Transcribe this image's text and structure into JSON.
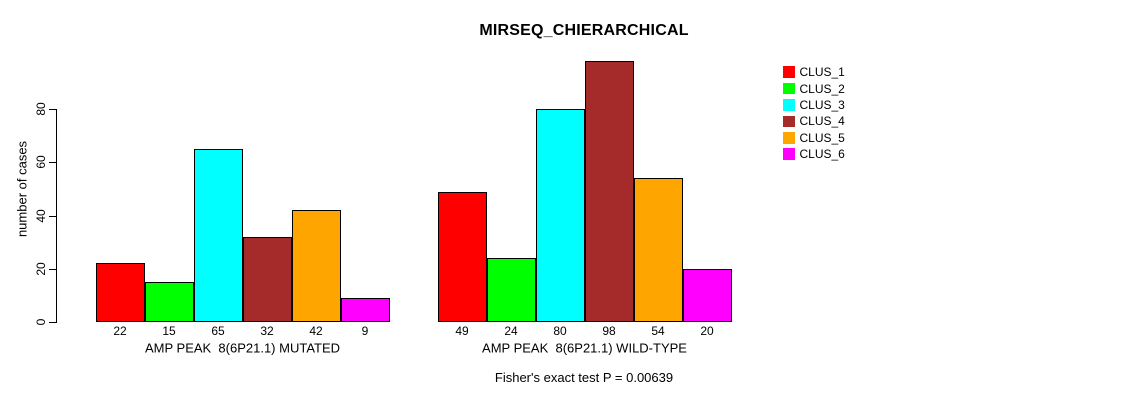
{
  "chart_data": {
    "type": "bar",
    "title": "MIRSEQ_CHIERARCHICAL",
    "ylabel": "number of cases",
    "xlabel": "",
    "ylim": [
      0,
      80
    ],
    "yticks": [
      0,
      20,
      40,
      60,
      80
    ],
    "grid": false,
    "legend_position": "right-outside",
    "shows_value_labels": true,
    "categories": [
      "AMP PEAK  8(6P21.1) MUTATED",
      "AMP PEAK  8(6P21.1) WILD-TYPE"
    ],
    "series": [
      {
        "name": "CLUS_1",
        "color": "#FF0000",
        "values": [
          22,
          49
        ]
      },
      {
        "name": "CLUS_2",
        "color": "#00FF00",
        "values": [
          15,
          24
        ]
      },
      {
        "name": "CLUS_3",
        "color": "#00FFFF",
        "values": [
          65,
          80
        ]
      },
      {
        "name": "CLUS_4",
        "color": "#A52A2A",
        "values": [
          32,
          98
        ]
      },
      {
        "name": "CLUS_5",
        "color": "#FFA500",
        "values": [
          42,
          54
        ]
      },
      {
        "name": "CLUS_6",
        "color": "#FF00FF",
        "values": [
          9,
          20
        ]
      }
    ],
    "annotation": "Fisher's exact test P = 0.00639",
    "axis_color": "#000000",
    "background_color": "#FFFFFF"
  }
}
